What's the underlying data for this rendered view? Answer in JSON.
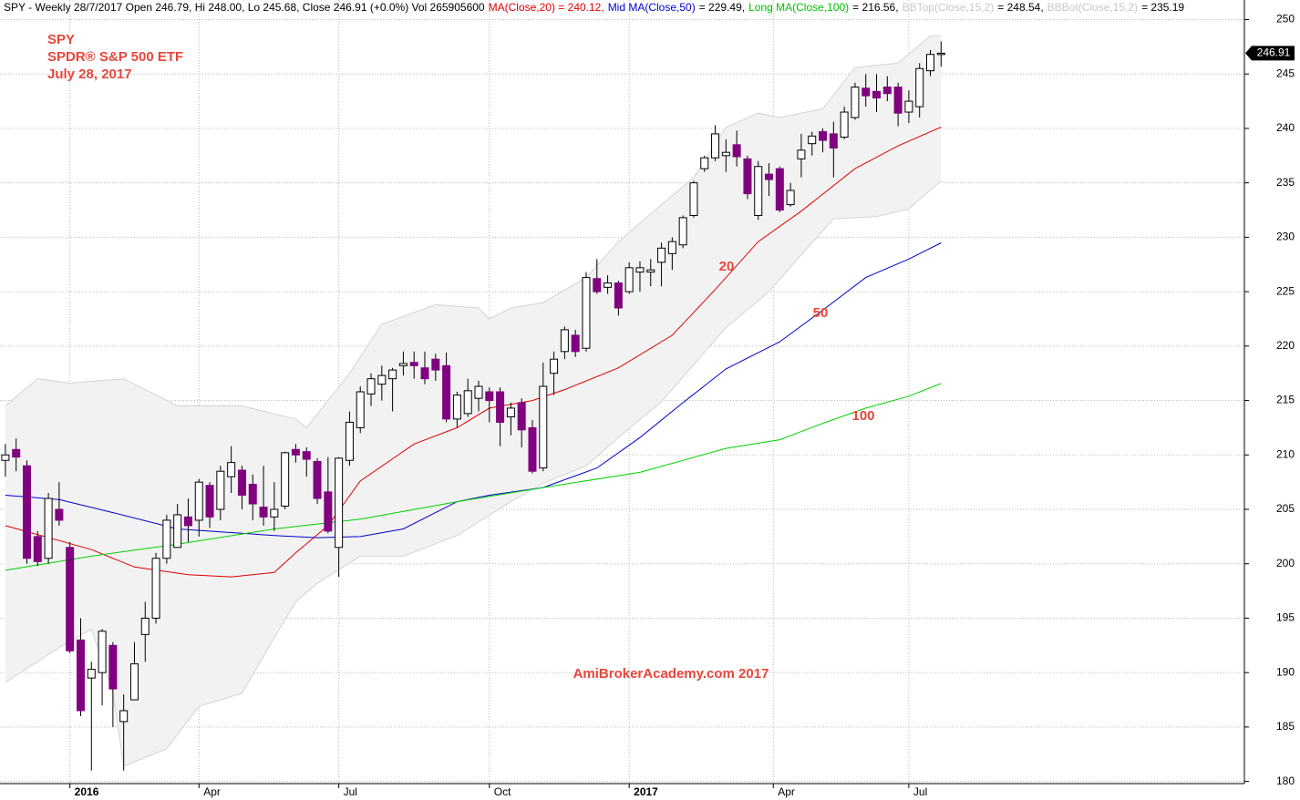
{
  "chart_data": {
    "type": "candlestick",
    "header": [
      {
        "text": "SPY - Weekly 28/7/2017 Open 246.79, Hi 248.00, Lo 245.68, Close 246.91 (+0.0%) Vol 265905600",
        "color": "#000000"
      },
      {
        "text": "MA(Close,20) = 240.12,",
        "color": "#e00000"
      },
      {
        "text": "Mid MA(Close,50)",
        "color": "#0000d0"
      },
      {
        "text": "= 229.49,",
        "color": "#000000"
      },
      {
        "text": "Long MA(Close,100)",
        "color": "#00c000"
      },
      {
        "text": "= 216.56,",
        "color": "#000000"
      },
      {
        "text": "BBTop(Close,15,2)",
        "color": "#c8c8c8"
      },
      {
        "text": "= 248.54,",
        "color": "#000000"
      },
      {
        "text": "BBBot(Close,15,2)",
        "color": "#c8c8c8"
      },
      {
        "text": "= 235.19",
        "color": "#000000"
      }
    ],
    "title": [
      "SPY",
      "SPDR® S&P 500 ETF",
      "July 28, 2017"
    ],
    "annotations": [
      "20",
      "50",
      "100",
      "AmiBrokerAcademy.com 2017"
    ],
    "up_color": "#ffffff",
    "down_color": "#800080",
    "open": [
      209.5,
      210.5,
      209,
      202.5,
      200.5,
      205,
      201.5,
      193,
      189.5,
      190,
      192.5,
      185.5,
      187.5,
      193.5,
      195,
      200.5,
      201.5,
      204.3,
      204,
      207.2,
      205,
      208,
      208.6,
      207.3,
      205.2,
      204.3,
      205.3,
      210.5,
      210.3,
      209.4,
      206.6,
      201.5,
      209.5,
      212.5,
      215.6,
      216.5,
      217,
      218.2,
      218.5,
      218,
      218.8,
      218.2,
      213.3,
      213.8,
      215.2,
      215.8,
      215.8,
      213.5,
      214.8,
      212.5,
      208.8,
      217.5,
      219.5,
      221,
      219.8,
      226.2,
      225.4,
      225.8,
      225,
      226.8,
      226.8,
      227.7,
      228.5,
      229.3,
      232,
      236.3,
      237.3,
      237.5,
      238.5,
      237.2,
      232,
      235.8,
      236.3,
      233,
      237.2,
      238.6,
      239.7,
      239.5,
      239.2,
      241,
      243.7,
      243.4,
      243.8,
      243.8,
      241.5,
      242,
      245.3,
      246.79
    ],
    "high": [
      211,
      211.5,
      209.5,
      203,
      206.5,
      207.5,
      202,
      195,
      191,
      194,
      192.8,
      188,
      192.8,
      196.5,
      201,
      204.5,
      205.5,
      206,
      207.8,
      207.5,
      209,
      210.8,
      209,
      208.2,
      209,
      207.5,
      210.3,
      211,
      210.7,
      209.7,
      209.8,
      209.8,
      214,
      216.3,
      217.5,
      218.2,
      218,
      219.5,
      219.5,
      219.5,
      219.3,
      219.4,
      215.8,
      217,
      216.8,
      216.2,
      216.2,
      214.8,
      215.2,
      213.2,
      218.5,
      219.5,
      221.8,
      221.5,
      226.8,
      228,
      226.5,
      226,
      227.7,
      227.8,
      228,
      229.5,
      230,
      232,
      235.2,
      237.5,
      240.3,
      239,
      239.8,
      237.5,
      237,
      236.8,
      236.5,
      235,
      239.5,
      239.7,
      240,
      240.6,
      242,
      244.2,
      245,
      245,
      244.8,
      244.2,
      243.5,
      246,
      247.2,
      248.0
    ],
    "low": [
      208,
      208.5,
      200,
      199.8,
      200,
      203.5,
      191.8,
      186,
      181,
      187,
      185,
      181,
      187.5,
      191,
      194.5,
      200,
      201.5,
      202,
      202.5,
      203.3,
      204,
      206.5,
      205,
      204,
      203.5,
      203,
      205,
      209.3,
      208,
      205.5,
      202.8,
      198.8,
      209,
      212,
      214.5,
      215,
      214,
      217.3,
      217,
      216.5,
      216.8,
      213,
      212.5,
      213.5,
      214,
      213,
      210.8,
      211.8,
      210.7,
      208.3,
      208.5,
      215.5,
      218.8,
      219,
      219.5,
      224.8,
      224.8,
      222.8,
      224.8,
      225,
      225.5,
      225.5,
      227,
      229,
      231.8,
      236,
      237,
      236,
      236.5,
      233.5,
      231.6,
      233.8,
      232.3,
      232.8,
      235.5,
      237.5,
      237.8,
      235.5,
      239,
      240.8,
      242,
      241.5,
      242.5,
      240.2,
      240.5,
      241,
      244.8,
      245.68
    ],
    "close": [
      210,
      209.8,
      200.5,
      200.2,
      206,
      204,
      192,
      186.5,
      190.3,
      193.8,
      188.5,
      186.5,
      190.8,
      195,
      200.5,
      204,
      204.5,
      203.5,
      207.5,
      204.3,
      208.5,
      209.3,
      206.3,
      205.5,
      204.3,
      205,
      210.2,
      210,
      209.6,
      206,
      203,
      209.7,
      213,
      215.8,
      217,
      217.3,
      217.8,
      218.4,
      218.2,
      217,
      217.8,
      213.3,
      215.5,
      215.9,
      216.3,
      215,
      213,
      214.3,
      212.3,
      208.5,
      216.3,
      218.8,
      221.5,
      219.5,
      226.3,
      225,
      225.8,
      223.5,
      227.2,
      227.2,
      227,
      229,
      229.6,
      231.8,
      235,
      237.3,
      239.5,
      237.8,
      237.4,
      234,
      236.5,
      235.3,
      232.5,
      234.3,
      238,
      239.3,
      238.9,
      238.2,
      241.5,
      243.8,
      243,
      242.8,
      243.2,
      241.4,
      242.5,
      245.5,
      246.8,
      246.91
    ],
    "lines": [
      {
        "color": "#e00000",
        "x": [
          0,
          8,
          12,
          17,
          21,
          25,
          27,
          30,
          33,
          38,
          42,
          45,
          49,
          52,
          57,
          62,
          66,
          70,
          74,
          79,
          83,
          87
        ],
        "values": [
          203.5,
          201.3,
          199.7,
          199,
          198.8,
          199.2,
          201,
          203.5,
          207.6,
          211,
          212.5,
          214.3,
          215,
          216,
          218,
          221,
          225.2,
          229.6,
          232.4,
          236.3,
          238.4,
          240.12
        ]
      },
      {
        "color": "#0000d0",
        "x": [
          0,
          5,
          10,
          16,
          25,
          29,
          33,
          37,
          42,
          45,
          50,
          55,
          59,
          63,
          67,
          72,
          76,
          80,
          84,
          87
        ],
        "values": [
          206.3,
          205.9,
          204.7,
          203.2,
          202.6,
          202.4,
          202.5,
          203.2,
          205.7,
          206.3,
          207,
          208.8,
          211.6,
          214.8,
          217.9,
          220.4,
          223.3,
          226.3,
          228,
          229.49
        ]
      },
      {
        "color": "#00d000",
        "x": [
          0,
          8,
          16,
          25,
          33,
          42,
          50,
          59,
          67,
          72,
          76,
          80,
          84,
          87
        ],
        "values": [
          199.4,
          200.7,
          201.8,
          203.2,
          204.1,
          205.7,
          207,
          208.4,
          210.6,
          211.4,
          212.9,
          214.3,
          215.4,
          216.56
        ]
      }
    ],
    "band_color": "#f2f2f2",
    "band_edge": "#d4d4d4",
    "band": [
      {
        "x": [
          0,
          3,
          6,
          11,
          16,
          22,
          27,
          28,
          32,
          35,
          40,
          44,
          45,
          47,
          50,
          54,
          57,
          61,
          64,
          67,
          70,
          72,
          76,
          79,
          83,
          86,
          87
        ],
        "values": [
          214.5,
          217,
          216.6,
          217,
          214.5,
          214.5,
          213.3,
          212.5,
          217.5,
          222,
          223.8,
          223.5,
          222.5,
          223.5,
          224,
          226.3,
          229.6,
          233,
          235.5,
          240.1,
          241.4,
          241,
          241.8,
          245.6,
          246,
          248.5,
          248.54
        ]
      },
      {
        "x": [
          0,
          5,
          8,
          10,
          11,
          15,
          18,
          22,
          25,
          27,
          29,
          33,
          37,
          42,
          47,
          50,
          54,
          57,
          61,
          64,
          67,
          71,
          74,
          77,
          81,
          84,
          87
        ],
        "values": [
          189.1,
          192.3,
          194,
          188.1,
          181.4,
          183,
          186.9,
          188.1,
          193.2,
          196.5,
          198.2,
          200.7,
          200.7,
          202.6,
          205.7,
          207.4,
          209,
          211.6,
          214.9,
          218.3,
          221.7,
          225,
          228.4,
          231.7,
          231.9,
          232.6,
          235.19
        ]
      }
    ],
    "xlim": [
      -0.5,
      115.2
    ],
    "xticks": [
      {
        "value": 6,
        "label": "2016",
        "bold": true
      },
      {
        "value": 18,
        "label": "Apr"
      },
      {
        "value": 31,
        "label": "Jul"
      },
      {
        "value": 45,
        "label": "Oct"
      },
      {
        "value": 58,
        "label": "2017",
        "bold": true
      },
      {
        "value": 71.4,
        "label": "Apr"
      },
      {
        "value": 84,
        "label": "Jul"
      }
    ],
    "ylim": [
      179.8,
      251.8
    ],
    "yticks": [
      180,
      185,
      190,
      195,
      200,
      205,
      210,
      215,
      220,
      225,
      230,
      235,
      240,
      245,
      250
    ],
    "grid": true
  }
}
